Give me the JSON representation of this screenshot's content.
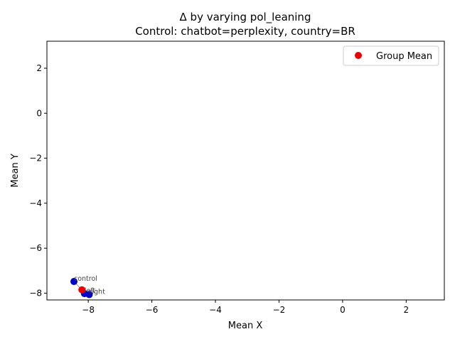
{
  "chart_data": {
    "type": "scatter",
    "title_line1": "Δ by varying pol_leaning",
    "title_line2": "Control: chatbot=perplexity, country=BR",
    "xlabel": "Mean X",
    "ylabel": "Mean Y",
    "xlim": [
      -9.3,
      3.2
    ],
    "ylim": [
      -8.3,
      3.2
    ],
    "x_ticks": [
      -8,
      -6,
      -4,
      -2,
      0,
      2
    ],
    "y_ticks": [
      -8,
      -6,
      -4,
      -2,
      0,
      2
    ],
    "x_tick_labels": [
      "−8",
      "−6",
      "−4",
      "−2",
      "0",
      "2"
    ],
    "y_tick_labels": [
      "−8",
      "−6",
      "−4",
      "−2",
      "0",
      "2"
    ],
    "grid": false,
    "legend_position": "top-right",
    "series": [
      {
        "color": "#0000cc",
        "points": [
          {
            "x": -8.45,
            "y": -7.48,
            "label": "control"
          },
          {
            "x": -8.12,
            "y": -8.02,
            "label": "left"
          },
          {
            "x": -7.97,
            "y": -8.06,
            "label": "right"
          }
        ]
      },
      {
        "name": "Group Mean",
        "color": "#ee0000",
        "points": [
          {
            "x": -8.2,
            "y": -7.85,
            "label": ""
          }
        ]
      }
    ],
    "arrows": [
      {
        "from": [
          -8.2,
          -7.85
        ],
        "to": [
          -8.45,
          -7.48
        ]
      },
      {
        "from": [
          -8.2,
          -7.85
        ],
        "to": [
          -8.12,
          -8.02
        ]
      },
      {
        "from": [
          -8.2,
          -7.85
        ],
        "to": [
          -7.97,
          -8.06
        ]
      }
    ],
    "annotation_color": "#444444"
  }
}
